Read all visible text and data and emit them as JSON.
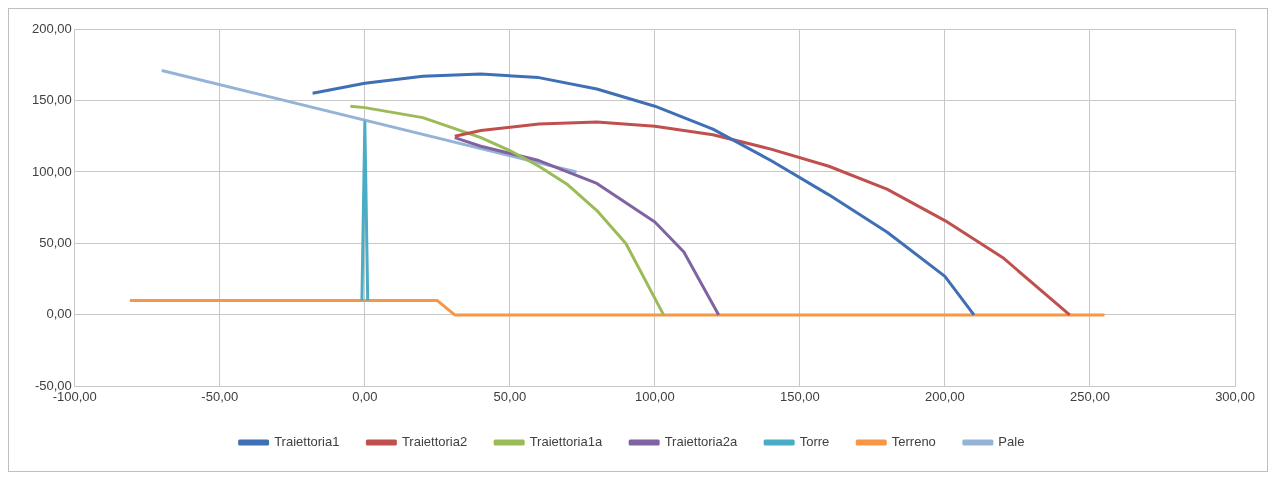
{
  "chart_data": {
    "type": "line",
    "marker": "none",
    "grid": true,
    "legend": "bottom",
    "xlim": [
      -100,
      300
    ],
    "xticks": [
      {
        "value": -100,
        "label": "-100,00"
      },
      {
        "value": -50,
        "label": "-50,00"
      },
      {
        "value": 0,
        "label": "0,00"
      },
      {
        "value": 50,
        "label": "50,00"
      },
      {
        "value": 100,
        "label": "100,00"
      },
      {
        "value": 150,
        "label": "150,00"
      },
      {
        "value": 200,
        "label": "200,00"
      },
      {
        "value": 250,
        "label": "250,00"
      },
      {
        "value": 300,
        "label": "300,00"
      }
    ],
    "ylim": [
      -50,
      200
    ],
    "yticks": [
      {
        "value": -50,
        "label": "-50,00"
      },
      {
        "value": 0,
        "label": "0,00"
      },
      {
        "value": 50,
        "label": "50,00"
      },
      {
        "value": 100,
        "label": "100,00"
      },
      {
        "value": 150,
        "label": "150,00"
      },
      {
        "value": 200,
        "label": "200,00"
      }
    ],
    "series": [
      {
        "name": "Traiettoria1",
        "color": "#3f6fb5",
        "x": [
          -18,
          0,
          20,
          40,
          60,
          80,
          100,
          120,
          140,
          160,
          180,
          200,
          210
        ],
        "values": [
          155,
          162,
          167,
          168.5,
          166,
          158,
          146,
          130,
          108,
          84,
          58,
          27,
          0
        ]
      },
      {
        "name": "Traiettoria2",
        "color": "#c0504d",
        "x": [
          31,
          40,
          60,
          80,
          100,
          120,
          140,
          160,
          180,
          200,
          220,
          243
        ],
        "values": [
          125,
          129,
          133.5,
          135,
          132,
          126,
          116,
          104,
          88,
          66,
          40,
          0
        ]
      },
      {
        "name": "Traiettoria1a",
        "color": "#9bbb59",
        "x": [
          -5,
          0,
          20,
          40,
          50,
          60,
          70,
          80,
          90,
          103
        ],
        "values": [
          146,
          145,
          138,
          124,
          115,
          104,
          91,
          73,
          50,
          0
        ]
      },
      {
        "name": "Traiettoria2a",
        "color": "#8064a2",
        "x": [
          31,
          40,
          60,
          80,
          100,
          110,
          122
        ],
        "values": [
          124,
          118,
          108,
          92,
          65,
          44,
          0
        ]
      },
      {
        "name": "Torre",
        "color": "#4bacc6",
        "x": [
          -1,
          0,
          1
        ],
        "values": [
          10,
          135,
          10
        ]
      },
      {
        "name": "Terreno",
        "color": "#f79646",
        "x": [
          -81,
          25,
          31,
          255
        ],
        "values": [
          10,
          10,
          0,
          0
        ]
      },
      {
        "name": "Pale",
        "color": "#95b3d7",
        "x": [
          -70,
          73
        ],
        "values": [
          171,
          100
        ]
      }
    ]
  }
}
